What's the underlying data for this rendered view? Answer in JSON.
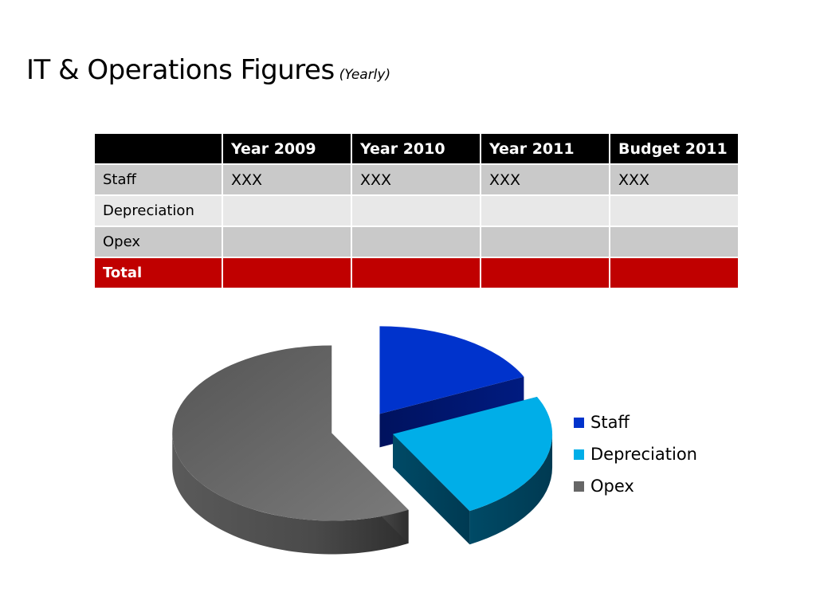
{
  "title": "IT & Operations Figures",
  "subtitle": "(Yearly)",
  "table": {
    "headers": [
      "",
      "Year 2009",
      "Year 2010",
      "Year 2011",
      "Budget 2011"
    ],
    "rows": [
      {
        "label": "Staff",
        "cells": [
          "XXX",
          "XXX",
          "XXX",
          "XXX"
        ]
      },
      {
        "label": "Depreciation",
        "cells": [
          "",
          "",
          "",
          ""
        ]
      },
      {
        "label": "Opex",
        "cells": [
          "",
          "",
          "",
          ""
        ]
      },
      {
        "label": "Total",
        "cells": [
          "",
          "",
          "",
          ""
        ]
      }
    ],
    "colors": {
      "header": "#000000",
      "band_dark": "#c9c9c9",
      "band_light": "#e8e8e8",
      "total": "#c00000"
    }
  },
  "chart_data": {
    "type": "pie",
    "style": "3d-exploded",
    "categories": [
      "Staff",
      "Depreciation",
      "Opex"
    ],
    "values": [
      18,
      24,
      58
    ],
    "colors": [
      "#0033cc",
      "#00aee8",
      "#666666"
    ],
    "legend_position": "right",
    "legend": [
      "Staff",
      "Depreciation",
      "Opex"
    ]
  }
}
